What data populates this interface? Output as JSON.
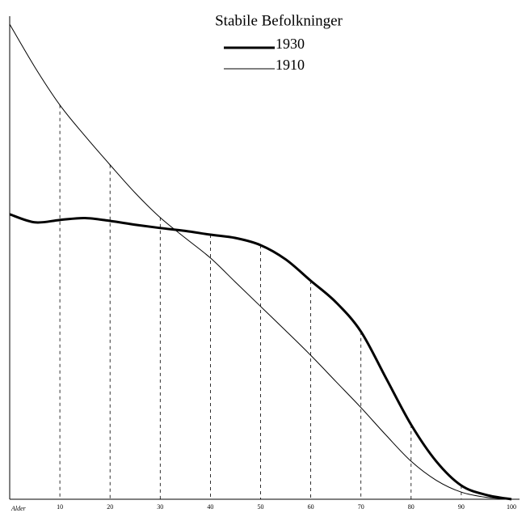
{
  "chart_data": {
    "type": "line",
    "title": "Stabile Befolkninger",
    "x_label": "Alder",
    "x": [
      0,
      5,
      10,
      15,
      20,
      25,
      30,
      35,
      40,
      45,
      50,
      55,
      60,
      65,
      70,
      75,
      80,
      85,
      90,
      95,
      100
    ],
    "series": [
      {
        "name": "1930",
        "color": "#000000",
        "width": 3,
        "values": [
          60,
          58.3,
          58.8,
          59.2,
          58.6,
          57.8,
          57.1,
          56.5,
          55.7,
          55,
          53.5,
          50.5,
          46,
          41.5,
          35.3,
          25.5,
          15.7,
          8,
          2.9,
          0.9,
          0
        ]
      },
      {
        "name": "1910",
        "color": "#000000",
        "width": 1,
        "values": [
          100,
          91,
          83,
          76.5,
          70.4,
          64.5,
          59.3,
          55,
          50.8,
          45.7,
          40.6,
          35.5,
          30.3,
          24.8,
          19.3,
          13.5,
          8,
          4,
          1.5,
          0.4,
          0
        ]
      }
    ],
    "xlim": [
      0,
      100
    ],
    "ylim": [
      0,
      100
    ],
    "xticks": [
      10,
      20,
      30,
      40,
      50,
      60,
      70,
      80,
      90,
      100
    ]
  }
}
